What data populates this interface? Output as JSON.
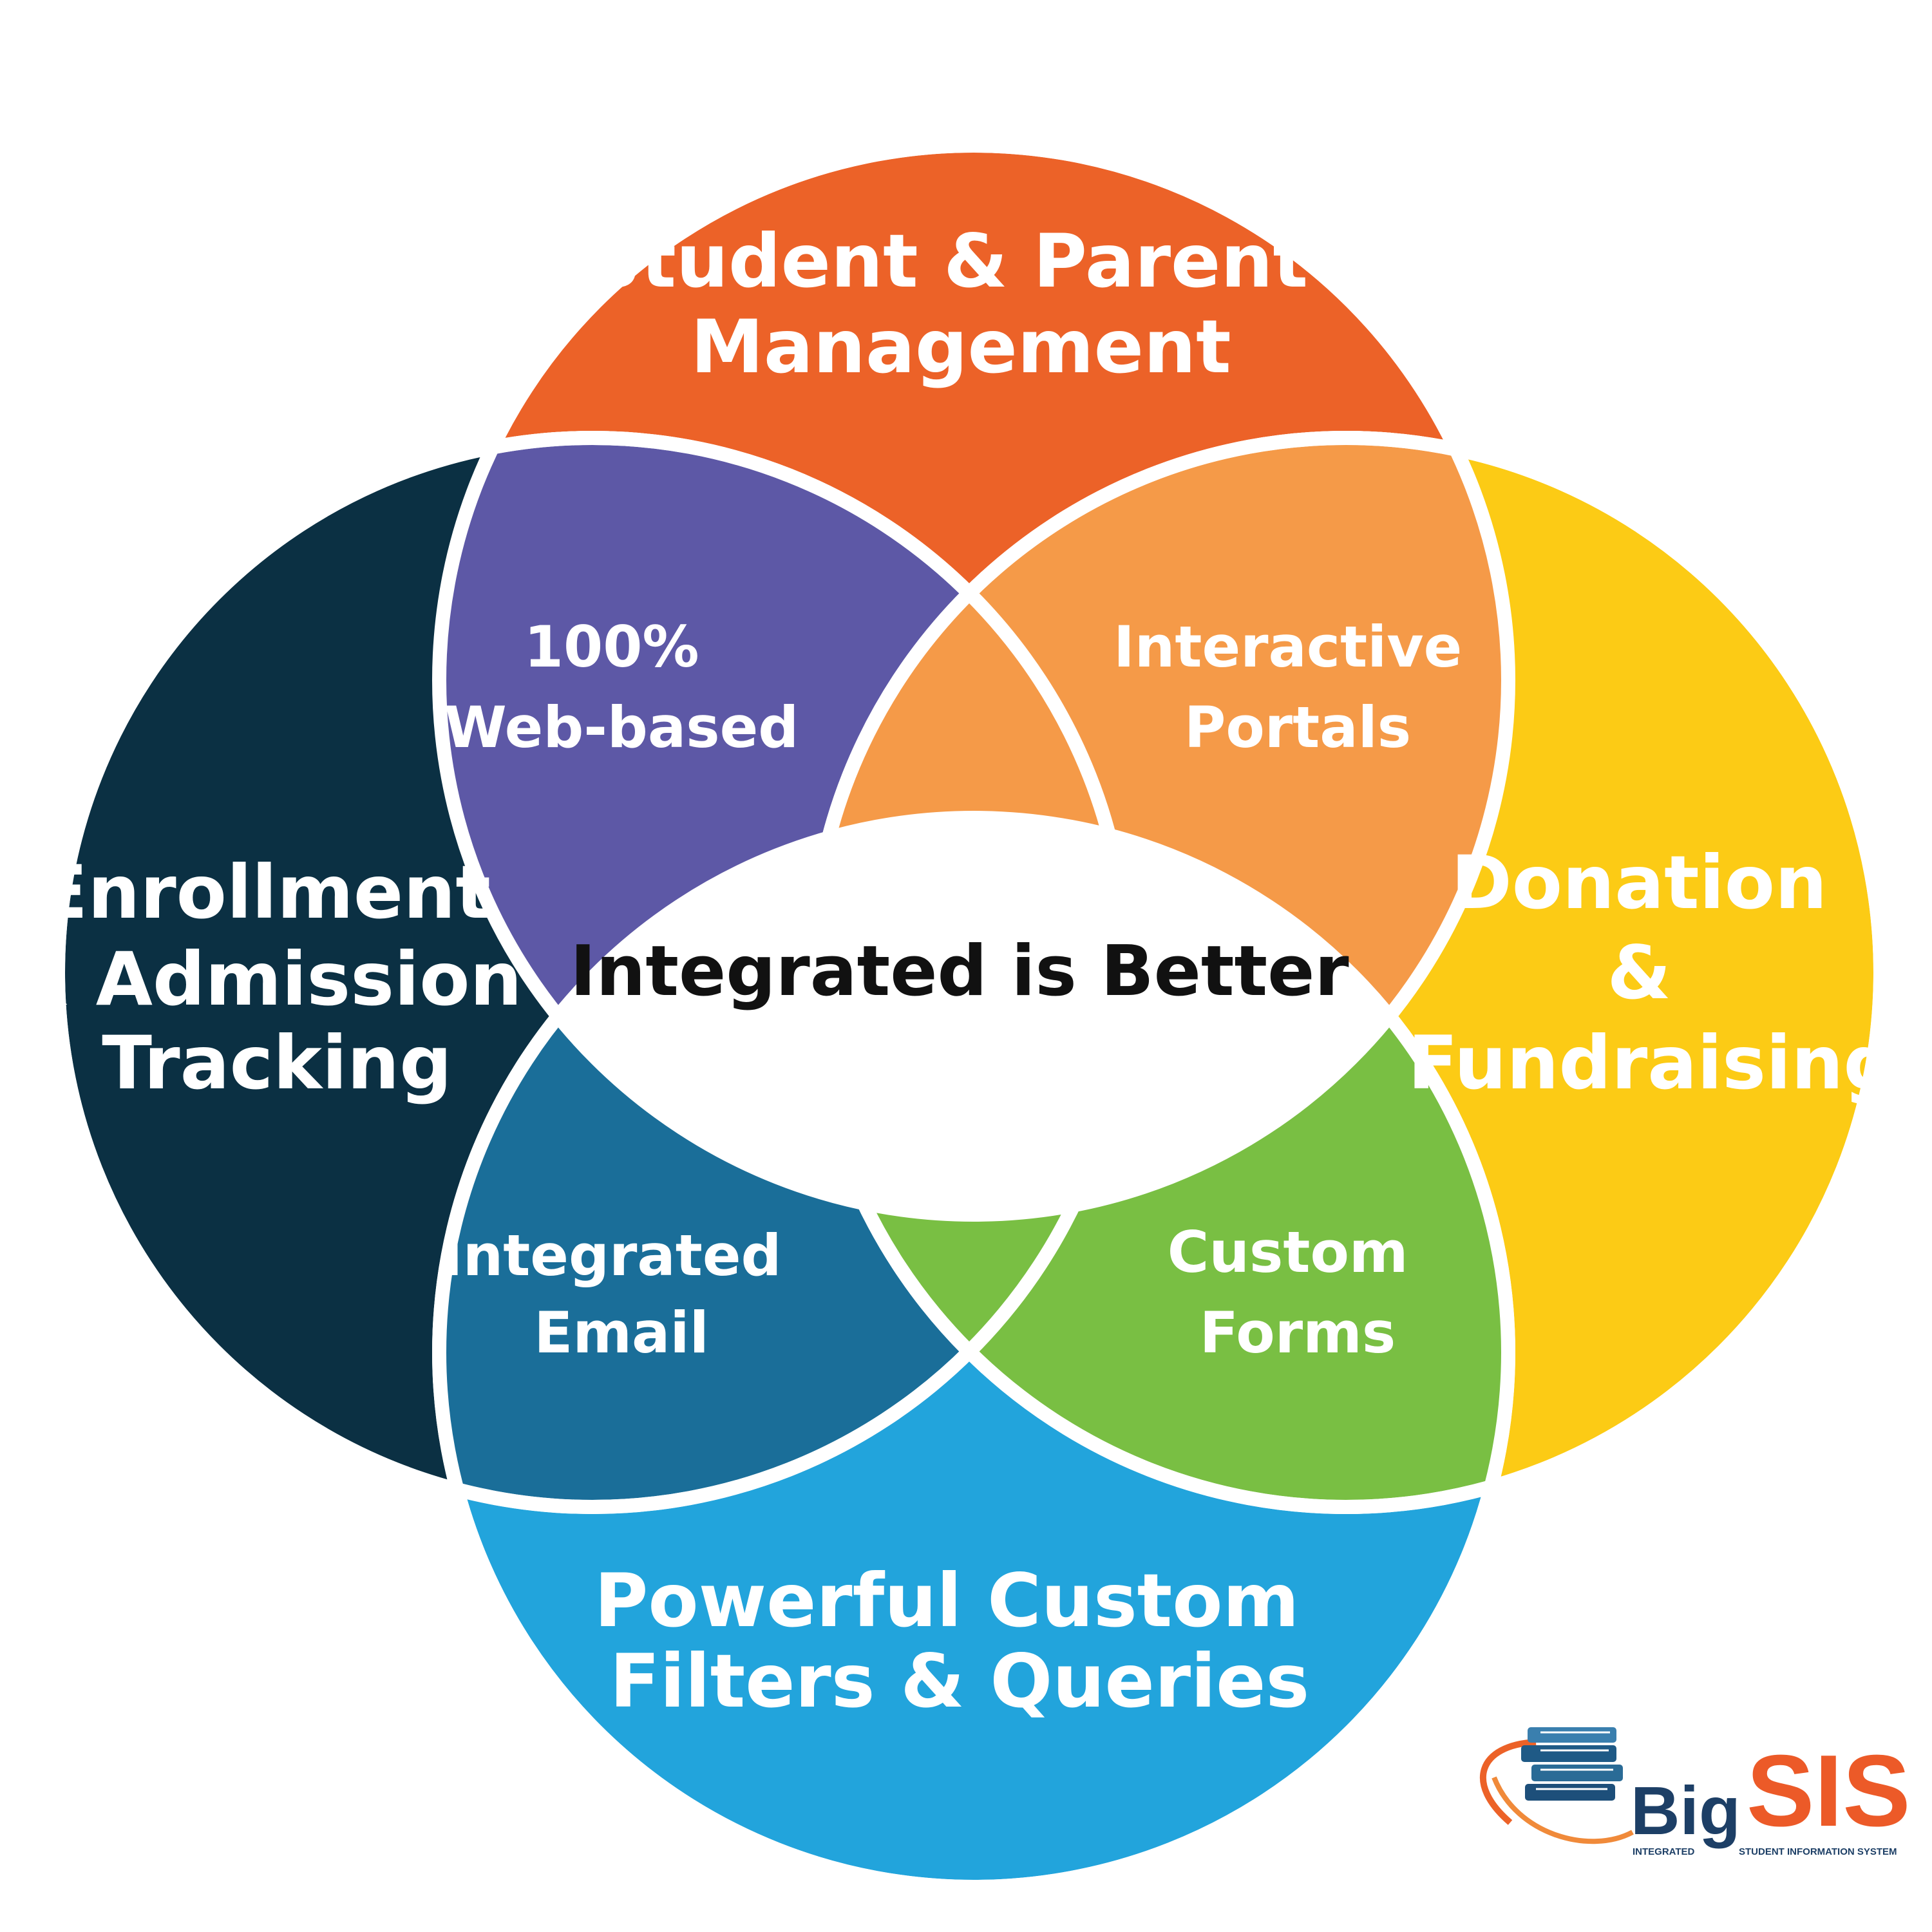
{
  "title": "Integrated is Better",
  "colors": {
    "top": "#ec6228",
    "right": "#fccb15",
    "bottom": "#22a4dc",
    "left": "#0b3043",
    "top_left": "#5d58a6",
    "top_right": "#f59a48",
    "bottom_left": "#1a6e99",
    "bottom_right": "#79bf43",
    "center_text": "#111111",
    "background": "#ffffff"
  },
  "circles": {
    "top": {
      "lines": [
        "Student & Parent",
        "Management"
      ]
    },
    "left": {
      "lines": [
        "Enrollment",
        "& Admission",
        "Tracking"
      ]
    },
    "right": {
      "lines": [
        "Donation",
        "&",
        "Fundraising"
      ]
    },
    "bottom": {
      "lines": [
        "Powerful Custom",
        "Filters & Queries"
      ]
    }
  },
  "overlaps": {
    "top_left": {
      "lines": [
        "100%",
        "Web-based"
      ]
    },
    "top_right": {
      "lines": [
        "Interactive",
        "Portals"
      ]
    },
    "bottom_left": {
      "lines": [
        "Integrated",
        "Email"
      ]
    },
    "bottom_right": {
      "lines": [
        "Custom",
        "Forms"
      ]
    }
  },
  "logo": {
    "name_part1": "Big",
    "name_part2": "SIS",
    "tagline_left": "INTEGRATED",
    "tagline_right": "STUDENT INFORMATION SYSTEM",
    "icon": "books-orbit-icon"
  }
}
